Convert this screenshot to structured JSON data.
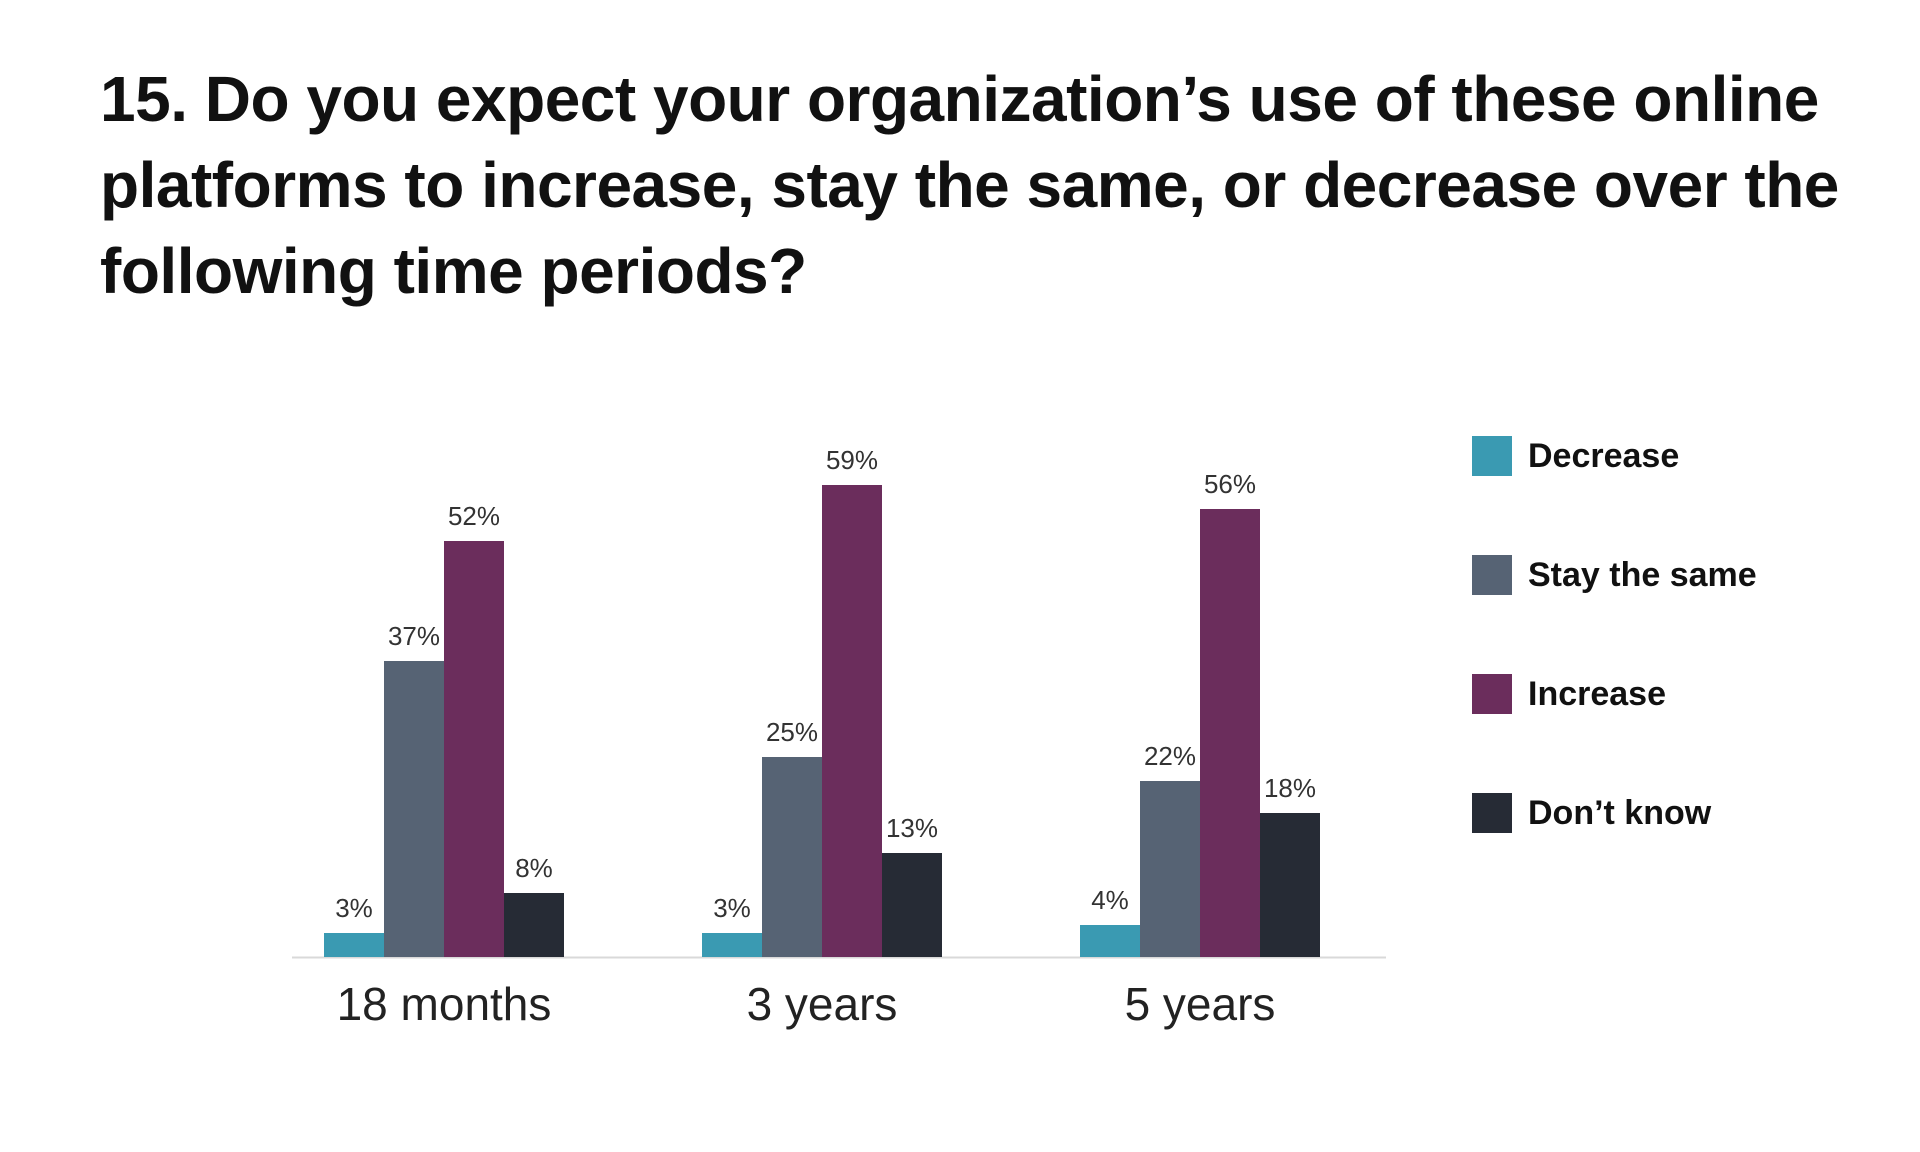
{
  "title": "15. Do you expect your organization’s use of these online platforms to increase, stay the same, or decrease over the following time periods?",
  "colors": {
    "decrease": "#3a9ab2",
    "stay_the_same": "#566374",
    "increase": "#6b2d5c",
    "dont_know": "#262b35",
    "axis": "#d9d9d9"
  },
  "legend": [
    {
      "label": "Decrease",
      "color": "#3a9ab2"
    },
    {
      "label": "Stay the same",
      "color": "#566374"
    },
    {
      "label": "Increase",
      "color": "#6b2d5c"
    },
    {
      "label": "Don’t know",
      "color": "#262b35"
    }
  ],
  "chart_data": {
    "type": "bar",
    "title": "15. Do you expect your organization’s use of these online platforms to increase, stay the same, or decrease over the following time periods?",
    "categories": [
      "18 months",
      "3 years",
      "5 years"
    ],
    "series": [
      {
        "name": "Decrease",
        "values": [
          3,
          3,
          4
        ],
        "labels": [
          "3%",
          "3%",
          "4%"
        ],
        "color": "#3a9ab2"
      },
      {
        "name": "Stay the same",
        "values": [
          37,
          25,
          22
        ],
        "labels": [
          "37%",
          "25%",
          "22%"
        ],
        "color": "#566374"
      },
      {
        "name": "Increase",
        "values": [
          52,
          59,
          56
        ],
        "labels": [
          "52%",
          "59%",
          "56%"
        ],
        "color": "#6b2d5c"
      },
      {
        "name": "Don’t know",
        "values": [
          8,
          13,
          18
        ],
        "labels": [
          "8%",
          "13%",
          "18%"
        ],
        "color": "#262b35"
      }
    ],
    "ylim": [
      0,
      59
    ],
    "xlabel": "",
    "ylabel": "",
    "grid": false,
    "legend_position": "right"
  }
}
